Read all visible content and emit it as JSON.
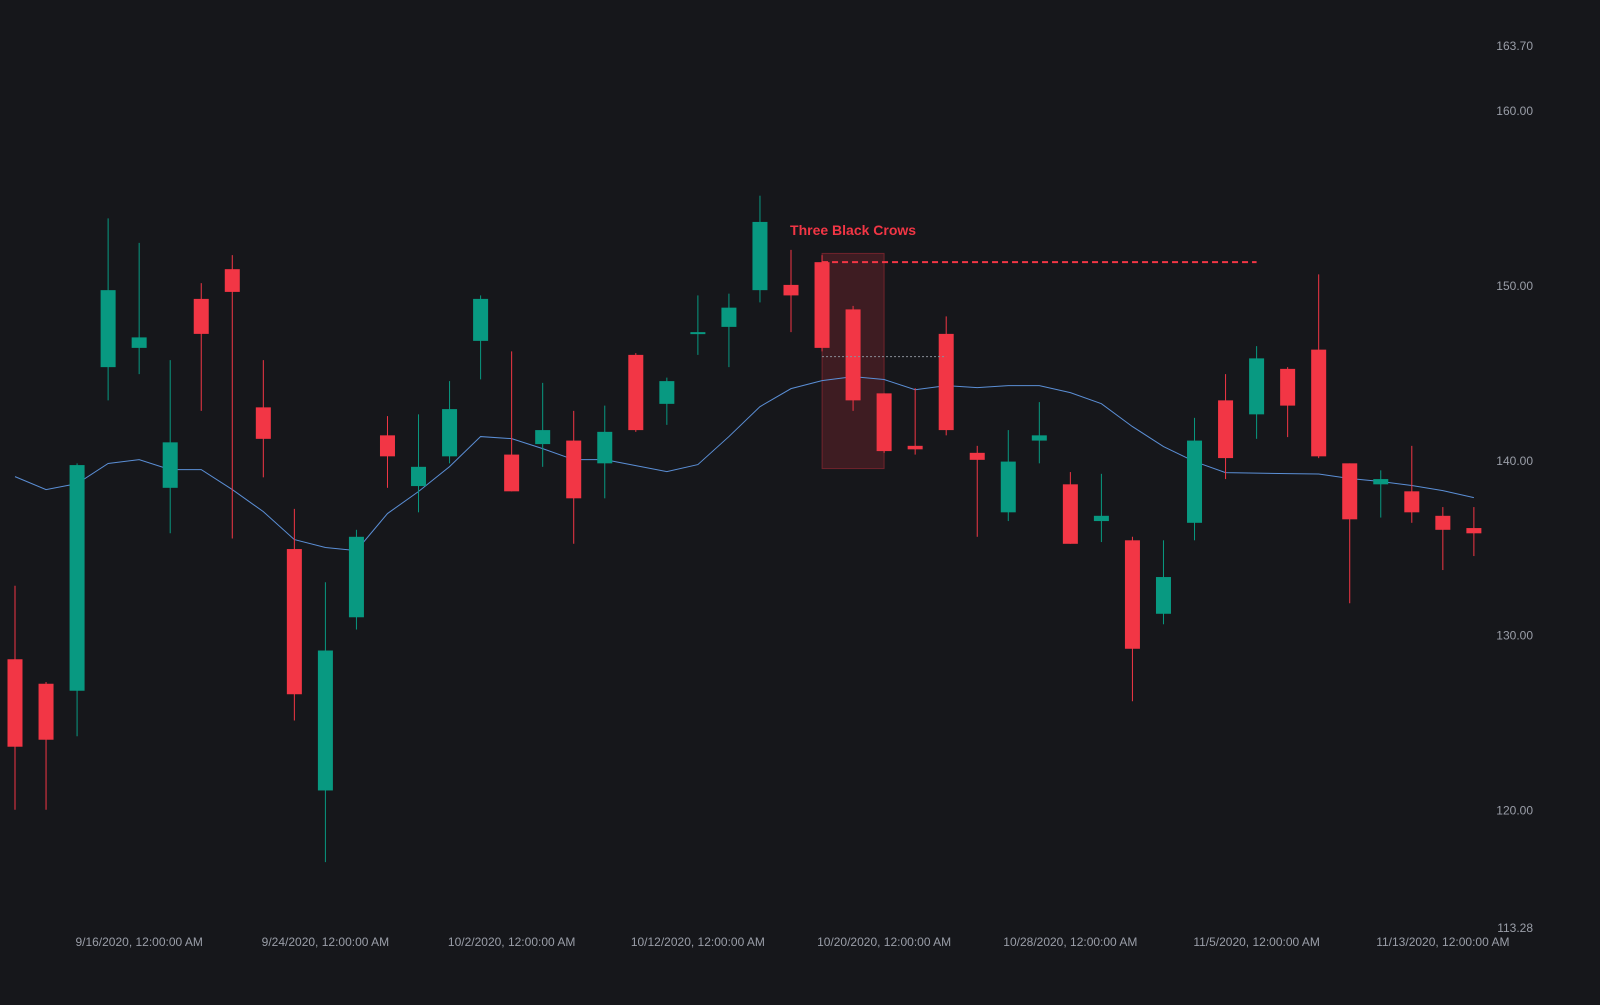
{
  "chart_data": {
    "type": "candlestick",
    "categories": [
      null,
      null,
      null,
      null,
      "9/16/2020, 12:00:00 AM",
      null,
      null,
      null,
      null,
      null,
      "9/24/2020, 12:00:00 AM",
      null,
      null,
      null,
      null,
      null,
      "10/2/2020, 12:00:00 AM",
      null,
      null,
      null,
      null,
      null,
      "10/12/2020, 12:00:00 AM",
      null,
      null,
      null,
      null,
      null,
      "10/20/2020, 12:00:00 AM",
      null,
      null,
      null,
      null,
      null,
      "10/28/2020, 12:00:00 AM",
      null,
      null,
      null,
      null,
      null,
      "11/5/2020, 12:00:00 AM",
      null,
      null,
      null,
      null,
      null,
      "11/13/2020, 12:00:00 AM",
      null
    ],
    "open": [
      128.7,
      127.3,
      126.9,
      145.4,
      146.5,
      138.5,
      149.3,
      151.0,
      143.1,
      135.0,
      121.2,
      131.1,
      141.5,
      138.6,
      140.3,
      146.9,
      140.4,
      141.0,
      141.2,
      139.9,
      146.1,
      143.3,
      147.3,
      147.7,
      149.8,
      150.1,
      151.4,
      148.7,
      143.9,
      140.9,
      147.3,
      140.5,
      137.1,
      141.2,
      138.7,
      136.6,
      135.5,
      131.3,
      136.5,
      143.5,
      142.7,
      145.3,
      146.4,
      139.9,
      138.7,
      138.3,
      136.9,
      136.2
    ],
    "high": [
      132.9,
      127.4,
      139.9,
      153.9,
      152.5,
      145.8,
      150.2,
      151.8,
      145.8,
      137.3,
      133.1,
      136.1,
      142.6,
      142.7,
      144.6,
      149.5,
      146.3,
      144.5,
      142.9,
      143.2,
      146.2,
      144.8,
      149.5,
      149.6,
      155.2,
      152.1,
      151.8,
      148.9,
      143.9,
      144.2,
      148.3,
      140.9,
      141.8,
      143.4,
      139.4,
      139.3,
      135.7,
      135.5,
      142.5,
      145.0,
      146.6,
      145.4,
      150.7,
      139.9,
      139.5,
      140.9,
      137.4,
      137.4
    ],
    "low": [
      120.1,
      120.1,
      124.3,
      143.5,
      145.0,
      135.9,
      142.9,
      135.6,
      139.1,
      125.2,
      117.1,
      130.4,
      138.5,
      137.1,
      139.9,
      144.7,
      138.3,
      139.7,
      135.3,
      137.9,
      141.7,
      142.1,
      146.1,
      145.4,
      149.1,
      147.4,
      146.3,
      142.9,
      140.5,
      140.4,
      141.5,
      135.7,
      136.6,
      139.9,
      135.3,
      135.4,
      126.3,
      130.7,
      135.5,
      139.0,
      141.3,
      141.4,
      140.2,
      131.9,
      136.8,
      136.5,
      133.8,
      134.6
    ],
    "close": [
      123.7,
      124.1,
      139.8,
      149.8,
      147.1,
      141.1,
      147.3,
      149.7,
      141.3,
      126.7,
      129.2,
      135.7,
      140.3,
      139.7,
      143.0,
      149.3,
      138.3,
      141.8,
      137.9,
      141.7,
      141.8,
      144.6,
      147.4,
      148.8,
      153.7,
      149.5,
      146.5,
      143.5,
      140.6,
      140.7,
      141.8,
      140.1,
      140.0,
      141.5,
      135.3,
      136.9,
      129.3,
      133.4,
      141.2,
      140.2,
      145.9,
      143.2,
      140.3,
      136.7,
      139.0,
      137.1,
      136.1,
      135.9
    ],
    "moving_average": {
      "color": "#5b8fd6",
      "values": [
        139.14,
        138.4,
        138.74,
        139.89,
        140.11,
        139.54,
        139.54,
        138.4,
        137.14,
        135.54,
        135.09,
        134.91,
        137.03,
        138.29,
        139.71,
        141.43,
        141.31,
        140.74,
        140.11,
        140.11,
        139.77,
        139.43,
        139.83,
        141.43,
        143.14,
        144.17,
        144.63,
        144.86,
        144.69,
        144.11,
        144.34,
        144.23,
        144.34,
        144.34,
        143.94,
        143.31,
        142.0,
        140.86,
        140.0,
        139.37,
        139.34,
        139.31,
        139.29,
        139.03,
        138.86,
        138.63,
        138.34,
        137.94
      ]
    },
    "up_color": "#089981",
    "down_color": "#f23645",
    "ylim": [
      113.28,
      163.7
    ],
    "yticks": [
      {
        "value": 113.28,
        "label": "113.28"
      },
      {
        "value": 120,
        "label": "120.00"
      },
      {
        "value": 130,
        "label": "130.00"
      },
      {
        "value": 140,
        "label": "140.00"
      },
      {
        "value": 150,
        "label": "150.00"
      },
      {
        "value": 160,
        "label": "160.00"
      },
      {
        "value": 163.7,
        "label": "163.70"
      }
    ],
    "annotation": {
      "label": "Three Black Crows",
      "color": "#f23645",
      "box_top": 151.9,
      "box_bottom": 139.6,
      "resistance": 151.4,
      "midpoint": 146.0
    }
  }
}
